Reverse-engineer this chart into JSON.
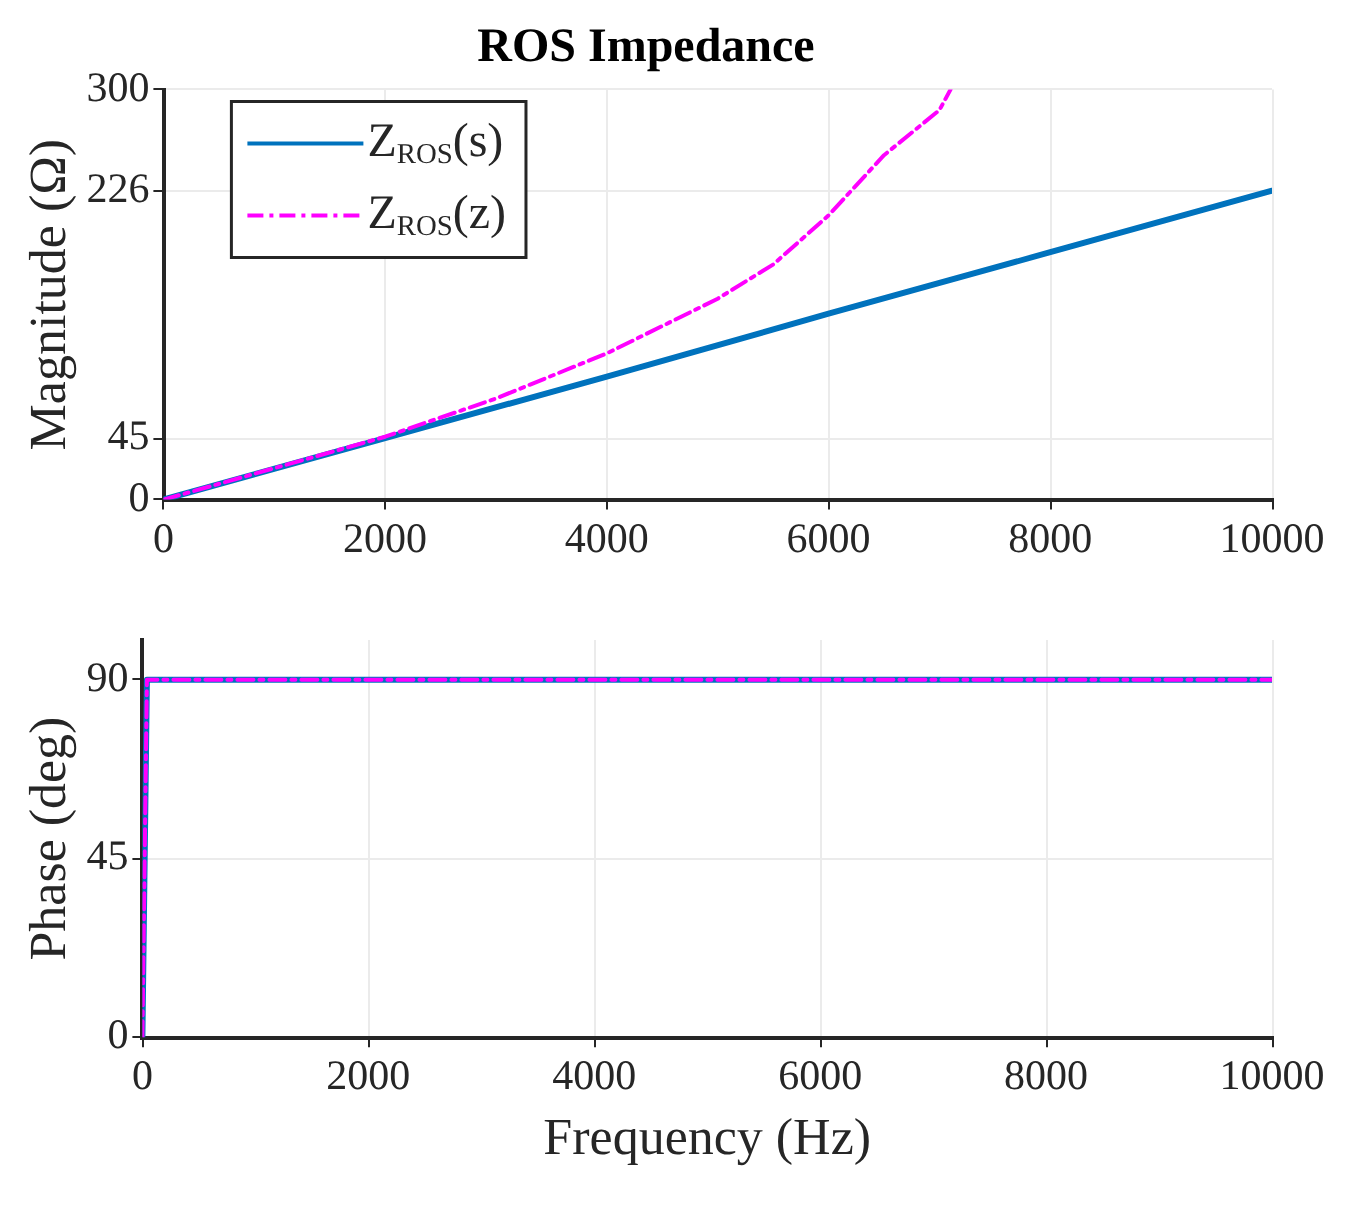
{
  "chart_data": [
    {
      "type": "line",
      "title": "ROS Impedance",
      "ylabel": "Magnitude (Ω)",
      "xlim": [
        0,
        10000
      ],
      "xticks": [
        0,
        2000,
        4000,
        6000,
        8000,
        10000
      ],
      "ylim": [
        0,
        300
      ],
      "yticks": [
        0,
        45,
        226,
        300
      ],
      "grid": true,
      "legend": "top left",
      "marker": "none",
      "series": [
        {
          "name": "Z$_{ROS}$(s)",
          "color": "#0072bd",
          "line_style": "solid",
          "x": [
            0,
            2000,
            4000,
            6000,
            8000,
            10000
          ],
          "values": [
            0,
            45,
            90,
            136,
            181,
            226
          ]
        },
        {
          "name": "Z$_{ROS}$(z)",
          "color": "#ff00ff",
          "line_style": "dashed",
          "x": [
            0,
            1000,
            2000,
            3000,
            4000,
            5000,
            5500,
            6000,
            6500,
            7000,
            7100
          ],
          "values": [
            0,
            23,
            46,
            74,
            107,
            147,
            172,
            208,
            252,
            285,
            300
          ]
        }
      ]
    },
    {
      "type": "line",
      "xlabel": "Frequency (Hz)",
      "ylabel": "Phase (deg)",
      "xlim": [
        0,
        10000
      ],
      "xticks": [
        0,
        2000,
        4000,
        6000,
        8000,
        10000
      ],
      "ylim": [
        0,
        100
      ],
      "yticks": [
        0,
        45,
        90
      ],
      "grid": true,
      "marker": "none",
      "series": [
        {
          "color": "#0072bd",
          "line_style": "solid",
          "x": [
            0,
            40,
            10000
          ],
          "values": [
            0,
            90,
            90
          ]
        },
        {
          "color": "#ff00ff",
          "line_style": "dashed",
          "x": [
            0,
            40,
            10000
          ],
          "values": [
            0,
            90,
            90
          ]
        }
      ]
    }
  ]
}
